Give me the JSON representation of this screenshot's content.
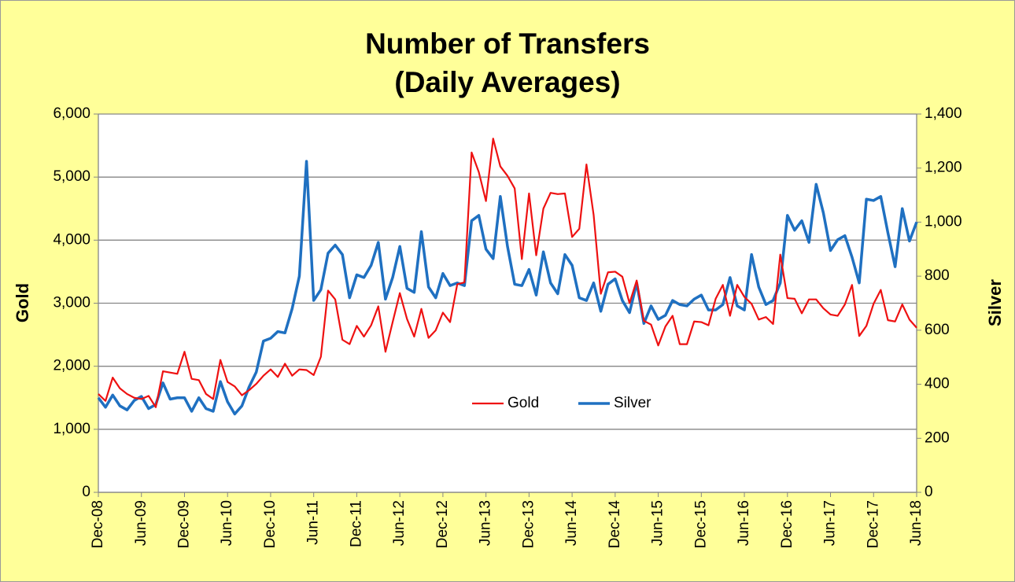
{
  "chart_data": {
    "type": "line",
    "title": "Number of Transfers",
    "subtitle": "(Daily Averages)",
    "ylabel": "Gold",
    "y2label": "Silver",
    "categories": [
      "Dec-08",
      null,
      null,
      null,
      null,
      null,
      "Jun-09",
      null,
      null,
      null,
      null,
      null,
      "Dec-09",
      null,
      null,
      null,
      null,
      null,
      "Jun-10",
      null,
      null,
      null,
      null,
      null,
      "Dec-10",
      null,
      null,
      null,
      null,
      null,
      "Jun-11",
      null,
      null,
      null,
      null,
      null,
      "Dec-11",
      null,
      null,
      null,
      null,
      null,
      "Jun-12",
      null,
      null,
      null,
      null,
      null,
      "Dec-12",
      null,
      null,
      null,
      null,
      null,
      "Jun-13",
      null,
      null,
      null,
      null,
      null,
      "Dec-13",
      null,
      null,
      null,
      null,
      null,
      "Jun-14",
      null,
      null,
      null,
      null,
      null,
      "Dec-14",
      null,
      null,
      null,
      null,
      null,
      "Jun-15",
      null,
      null,
      null,
      null,
      null,
      "Dec-15",
      null,
      null,
      null,
      null,
      null,
      "Jun-16",
      null,
      null,
      null,
      null,
      null,
      "Dec-16",
      null,
      null,
      null,
      null,
      null,
      "Jun-17",
      null,
      null,
      null,
      null,
      null,
      "Dec-17",
      null,
      null,
      null,
      null,
      null,
      "Jun-18"
    ],
    "series": [
      {
        "name": "Gold",
        "color": "#ee1111",
        "values": [
          1560,
          1450,
          1820,
          1650,
          1560,
          1500,
          1480,
          1530,
          1350,
          1920,
          1900,
          1880,
          2230,
          1800,
          1780,
          1560,
          1480,
          2100,
          1750,
          1680,
          1540,
          1620,
          1720,
          1850,
          1950,
          1830,
          2040,
          1850,
          1950,
          1940,
          1860,
          2150,
          3200,
          3060,
          2420,
          2350,
          2640,
          2470,
          2650,
          2950,
          2230,
          2700,
          3160,
          2750,
          2470,
          2910,
          2450,
          2570,
          2850,
          2700,
          3300,
          3330,
          5390,
          5080,
          4620,
          5610,
          5170,
          5020,
          4820,
          3700,
          4740,
          3760,
          4500,
          4750,
          4730,
          4740,
          4050,
          4180,
          5200,
          4400,
          3150,
          3490,
          3500,
          3420,
          3000,
          3360,
          2720,
          2660,
          2330,
          2630,
          2800,
          2350,
          2350,
          2710,
          2700,
          2650,
          3070,
          3290,
          2800,
          3290,
          3100,
          2990,
          2740,
          2780,
          2670,
          3770,
          3080,
          3070,
          2840,
          3060,
          3060,
          2920,
          2820,
          2800,
          2980,
          3290,
          2480,
          2640,
          2990,
          3210,
          2730,
          2710,
          2980,
          2740,
          2610
        ]
      },
      {
        "name": "Silver",
        "color": "#1f70c1",
        "axis": "y2",
        "values": [
          350,
          315,
          360,
          320,
          305,
          340,
          355,
          310,
          325,
          405,
          345,
          350,
          350,
          300,
          350,
          310,
          300,
          410,
          335,
          290,
          320,
          390,
          445,
          560,
          570,
          595,
          590,
          680,
          800,
          1225,
          710,
          750,
          885,
          915,
          880,
          720,
          805,
          795,
          840,
          925,
          715,
          795,
          910,
          755,
          740,
          965,
          760,
          720,
          810,
          765,
          775,
          765,
          1005,
          1025,
          900,
          865,
          1095,
          910,
          770,
          765,
          825,
          730,
          890,
          775,
          735,
          880,
          840,
          720,
          710,
          775,
          670,
          770,
          790,
          710,
          665,
          775,
          625,
          690,
          640,
          655,
          710,
          695,
          690,
          715,
          730,
          675,
          675,
          695,
          795,
          690,
          675,
          880,
          760,
          695,
          710,
          775,
          1025,
          970,
          1005,
          925,
          1140,
          1035,
          895,
          935,
          950,
          870,
          775,
          1085,
          1080,
          1095,
          960,
          835,
          1050,
          930,
          1000
        ]
      }
    ],
    "ylim": [
      0,
      6000
    ],
    "yticks": [
      0,
      {
        "value": 1000,
        "label": "1,000"
      },
      {
        "value": 2000,
        "label": "2,000"
      },
      {
        "value": 3000,
        "label": "3,000"
      },
      {
        "value": 4000,
        "label": "4,000"
      },
      {
        "value": 5000,
        "label": "5,000"
      },
      {
        "value": 6000,
        "label": "6,000"
      }
    ],
    "y2lim": [
      0,
      1400
    ],
    "y2ticks": [
      0,
      200,
      400,
      600,
      800,
      {
        "value": 1000,
        "label": "1,000"
      },
      {
        "value": 1200,
        "label": "1,200"
      },
      {
        "value": 1400,
        "label": "1,400"
      }
    ],
    "grid": true,
    "legend": "center"
  }
}
